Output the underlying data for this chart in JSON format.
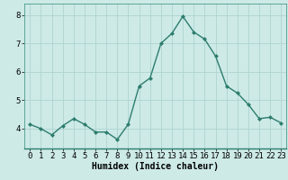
{
  "x": [
    0,
    1,
    2,
    3,
    4,
    5,
    6,
    7,
    8,
    9,
    10,
    11,
    12,
    13,
    14,
    15,
    16,
    17,
    18,
    19,
    20,
    21,
    22,
    23
  ],
  "y": [
    4.15,
    4.0,
    3.78,
    4.1,
    4.35,
    4.15,
    3.88,
    3.88,
    3.62,
    4.15,
    5.5,
    5.78,
    7.0,
    7.35,
    7.95,
    7.4,
    7.15,
    6.55,
    5.5,
    5.25,
    4.85,
    4.35,
    4.4,
    4.2
  ],
  "line_color": "#2d7d6d",
  "marker": "D",
  "marker_size": 2.5,
  "bg_color": "#cdeae7",
  "grid_color": "#aed4d0",
  "xlabel": "Humidex (Indice chaleur)",
  "xlabel_fontsize": 7,
  "tick_fontsize": 6.5,
  "xlim": [
    -0.5,
    23.5
  ],
  "ylim": [
    3.3,
    8.4
  ],
  "yticks": [
    4,
    5,
    6,
    7,
    8
  ],
  "xticks": [
    0,
    1,
    2,
    3,
    4,
    5,
    6,
    7,
    8,
    9,
    10,
    11,
    12,
    13,
    14,
    15,
    16,
    17,
    18,
    19,
    20,
    21,
    22,
    23
  ]
}
